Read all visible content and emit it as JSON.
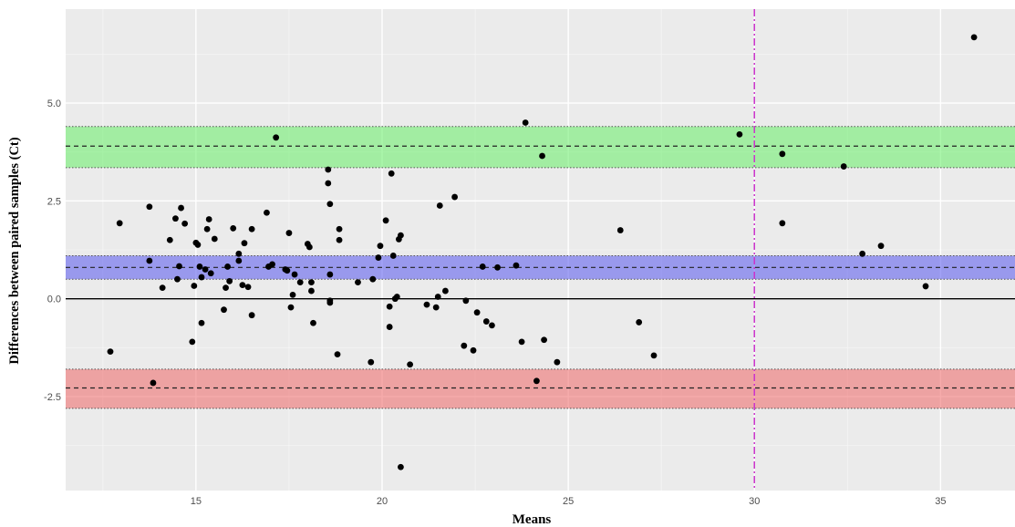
{
  "chart_data": {
    "type": "scatter",
    "xlabel": "Means",
    "ylabel": "Differences between paired samples (Ct)",
    "xlim": [
      11.5,
      37.0
    ],
    "ylim": [
      -4.9,
      7.4
    ],
    "x_ticks": [
      15,
      20,
      25,
      30,
      35
    ],
    "x_tick_labels": [
      "15",
      "20",
      "25",
      "30",
      "35"
    ],
    "y_ticks": [
      -2.5,
      0,
      2.5,
      5
    ],
    "y_tick_labels": [
      "-2.5",
      "0.0",
      "2.5",
      "5.0"
    ],
    "grid": true,
    "zero_line": 0,
    "vertical_line": {
      "x": 30,
      "color": "#cc33cc"
    },
    "bands": [
      {
        "center": 3.9,
        "lower": 3.35,
        "upper": 4.4,
        "color": "#66ee66"
      },
      {
        "center": 0.8,
        "lower": 0.5,
        "upper": 1.1,
        "color": "#5555ee"
      },
      {
        "center": -2.28,
        "lower": -2.8,
        "upper": -1.8,
        "color": "#ee6666"
      }
    ],
    "points": [
      [
        12.7,
        -1.35
      ],
      [
        12.95,
        1.93
      ],
      [
        13.75,
        2.35
      ],
      [
        13.75,
        0.97
      ],
      [
        13.85,
        -2.15
      ],
      [
        14.1,
        0.28
      ],
      [
        14.3,
        1.5
      ],
      [
        14.45,
        2.05
      ],
      [
        14.5,
        0.5
      ],
      [
        14.55,
        0.83
      ],
      [
        14.6,
        2.32
      ],
      [
        14.7,
        1.92
      ],
      [
        14.9,
        -1.1
      ],
      [
        14.95,
        0.33
      ],
      [
        15.0,
        1.43
      ],
      [
        15.05,
        1.38
      ],
      [
        15.1,
        0.82
      ],
      [
        15.15,
        -0.62
      ],
      [
        15.15,
        0.55
      ],
      [
        15.25,
        0.75
      ],
      [
        15.3,
        1.78
      ],
      [
        15.35,
        2.03
      ],
      [
        15.4,
        0.65
      ],
      [
        15.5,
        1.53
      ],
      [
        15.75,
        -0.28
      ],
      [
        15.8,
        0.28
      ],
      [
        15.85,
        0.82
      ],
      [
        15.9,
        0.45
      ],
      [
        16.0,
        1.8
      ],
      [
        16.15,
        1.15
      ],
      [
        16.15,
        0.97
      ],
      [
        16.25,
        0.35
      ],
      [
        16.3,
        1.42
      ],
      [
        16.4,
        0.3
      ],
      [
        16.5,
        1.78
      ],
      [
        16.5,
        -0.42
      ],
      [
        16.9,
        2.2
      ],
      [
        16.95,
        0.82
      ],
      [
        17.05,
        0.88
      ],
      [
        17.15,
        4.12
      ],
      [
        17.4,
        0.75
      ],
      [
        17.45,
        0.72
      ],
      [
        17.5,
        1.68
      ],
      [
        17.55,
        -0.22
      ],
      [
        17.6,
        0.1
      ],
      [
        17.65,
        0.62
      ],
      [
        17.8,
        0.42
      ],
      [
        18.0,
        1.4
      ],
      [
        18.05,
        1.32
      ],
      [
        18.1,
        0.42
      ],
      [
        18.1,
        0.2
      ],
      [
        18.15,
        -0.62
      ],
      [
        18.55,
        3.3
      ],
      [
        18.55,
        2.95
      ],
      [
        18.6,
        2.42
      ],
      [
        18.6,
        0.62
      ],
      [
        18.6,
        -0.05
      ],
      [
        18.6,
        -0.1
      ],
      [
        18.8,
        -1.42
      ],
      [
        18.85,
        1.5
      ],
      [
        18.85,
        1.78
      ],
      [
        19.35,
        0.42
      ],
      [
        19.7,
        -1.62
      ],
      [
        19.75,
        0.5
      ],
      [
        19.9,
        1.05
      ],
      [
        19.95,
        1.35
      ],
      [
        20.1,
        2.0
      ],
      [
        20.2,
        -0.2
      ],
      [
        20.2,
        -0.72
      ],
      [
        20.25,
        3.2
      ],
      [
        20.3,
        1.1
      ],
      [
        20.35,
        0.0
      ],
      [
        20.4,
        0.05
      ],
      [
        20.45,
        1.52
      ],
      [
        20.5,
        1.62
      ],
      [
        20.5,
        -4.3
      ],
      [
        20.75,
        -1.68
      ],
      [
        21.2,
        -0.15
      ],
      [
        21.45,
        -0.22
      ],
      [
        21.5,
        0.05
      ],
      [
        21.55,
        2.38
      ],
      [
        21.7,
        0.2
      ],
      [
        21.95,
        2.6
      ],
      [
        22.2,
        -1.2
      ],
      [
        22.25,
        -0.05
      ],
      [
        22.45,
        -1.32
      ],
      [
        22.55,
        -0.35
      ],
      [
        22.7,
        0.82
      ],
      [
        22.8,
        -0.58
      ],
      [
        22.95,
        -0.68
      ],
      [
        23.1,
        0.8
      ],
      [
        23.6,
        0.85
      ],
      [
        23.75,
        -1.1
      ],
      [
        23.85,
        4.5
      ],
      [
        24.15,
        -2.1
      ],
      [
        24.3,
        3.65
      ],
      [
        24.35,
        -1.05
      ],
      [
        24.7,
        -1.62
      ],
      [
        26.4,
        1.75
      ],
      [
        26.9,
        -0.6
      ],
      [
        27.3,
        -1.45
      ],
      [
        29.6,
        4.2
      ],
      [
        30.75,
        3.7
      ],
      [
        30.75,
        1.93
      ],
      [
        32.4,
        3.38
      ],
      [
        32.9,
        1.15
      ],
      [
        33.4,
        1.35
      ],
      [
        34.6,
        0.32
      ],
      [
        35.9,
        6.68
      ]
    ]
  }
}
